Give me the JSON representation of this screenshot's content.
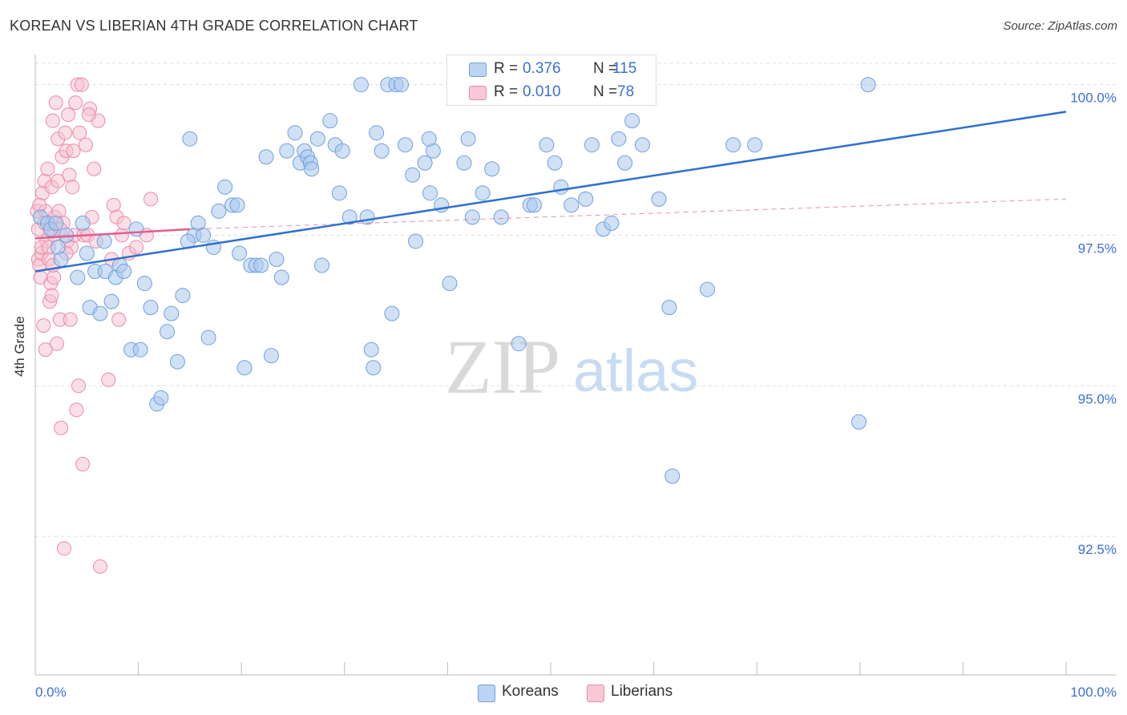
{
  "title": "KOREAN VS LIBERIAN 4TH GRADE CORRELATION CHART",
  "source": "Source: ZipAtlas.com",
  "watermark": {
    "zip": "ZIP",
    "atlas": "atlas"
  },
  "legend_top": [
    {
      "r_label": "R =",
      "r_value": "0.376",
      "n_label": "N =",
      "n_value": "115"
    },
    {
      "r_label": "R =",
      "r_value": "0.010",
      "n_label": "N =",
      "n_value": "78"
    }
  ],
  "legend_bottom": [
    "Koreans",
    "Liberians"
  ],
  "colors": {
    "koreans_fill": "#aac8ef",
    "koreans_stroke": "#6f9fdc",
    "koreans_line": "#2f6fd0",
    "liberians_fill": "#f7c0d0",
    "liberians_stroke": "#e98aa8",
    "liberians_line": "#e45c8a",
    "tick_label": "#3a6fd8",
    "grid": "#dddddd"
  },
  "chart_data": {
    "type": "scatter",
    "title": "KOREAN VS LIBERIAN 4TH GRADE CORRELATION CHART",
    "xlabel": "",
    "ylabel": "4th Grade",
    "xlim": [
      0,
      100
    ],
    "ylim": [
      90.2,
      100.5
    ],
    "x_tick_labels": [
      "0.0%",
      "100.0%"
    ],
    "y_ticks": [
      92.5,
      95.0,
      97.5,
      100.0
    ],
    "y_tick_labels": [
      "92.5%",
      "95.0%",
      "97.5%",
      "100.0%"
    ],
    "grid": "horizontal dashed",
    "legend_position": "top-center and bottom-center",
    "series": [
      {
        "name": "Koreans",
        "R": 0.376,
        "N": 115,
        "trend": {
          "x": [
            0,
            100
          ],
          "y": [
            96.9,
            99.55
          ]
        },
        "points": [
          [
            0.5,
            97.8
          ],
          [
            1.2,
            97.7
          ],
          [
            1.5,
            97.6
          ],
          [
            2.0,
            97.7
          ],
          [
            2.2,
            97.3
          ],
          [
            2.5,
            97.1
          ],
          [
            3.0,
            97.5
          ],
          [
            4.1,
            96.8
          ],
          [
            5.0,
            97.2
          ],
          [
            5.3,
            96.3
          ],
          [
            5.8,
            96.9
          ],
          [
            6.3,
            96.2
          ],
          [
            6.8,
            96.9
          ],
          [
            7.4,
            96.4
          ],
          [
            7.8,
            96.8
          ],
          [
            8.2,
            97.0
          ],
          [
            8.6,
            96.9
          ],
          [
            9.3,
            95.6
          ],
          [
            9.8,
            97.6
          ],
          [
            10.2,
            95.6
          ],
          [
            10.6,
            96.7
          ],
          [
            11.2,
            96.3
          ],
          [
            11.8,
            94.7
          ],
          [
            12.2,
            94.8
          ],
          [
            12.8,
            95.9
          ],
          [
            13.2,
            96.2
          ],
          [
            13.8,
            95.4
          ],
          [
            14.3,
            96.5
          ],
          [
            15.0,
            99.1
          ],
          [
            15.4,
            97.5
          ],
          [
            15.8,
            97.7
          ],
          [
            16.3,
            97.5
          ],
          [
            16.8,
            95.8
          ],
          [
            17.3,
            97.3
          ],
          [
            17.8,
            97.9
          ],
          [
            18.4,
            98.3
          ],
          [
            19.1,
            98.0
          ],
          [
            19.6,
            98.0
          ],
          [
            19.8,
            97.2
          ],
          [
            20.3,
            95.3
          ],
          [
            20.9,
            97.0
          ],
          [
            21.4,
            97.0
          ],
          [
            21.9,
            97.0
          ],
          [
            22.4,
            98.8
          ],
          [
            22.9,
            95.5
          ],
          [
            23.4,
            97.1
          ],
          [
            23.9,
            96.8
          ],
          [
            24.4,
            98.9
          ],
          [
            25.2,
            99.2
          ],
          [
            25.7,
            98.7
          ],
          [
            26.1,
            98.9
          ],
          [
            26.4,
            98.8
          ],
          [
            26.7,
            98.7
          ],
          [
            27.4,
            99.1
          ],
          [
            27.8,
            97.0
          ],
          [
            28.6,
            99.4
          ],
          [
            29.1,
            99.0
          ],
          [
            29.8,
            98.9
          ],
          [
            30.5,
            97.8
          ],
          [
            31.6,
            100.0
          ],
          [
            32.2,
            97.8
          ],
          [
            32.6,
            95.6
          ],
          [
            32.8,
            95.3
          ],
          [
            33.6,
            98.9
          ],
          [
            34.2,
            100.0
          ],
          [
            34.6,
            96.2
          ],
          [
            35.0,
            100.0
          ],
          [
            35.5,
            100.0
          ],
          [
            35.9,
            99.0
          ],
          [
            36.6,
            98.5
          ],
          [
            36.9,
            97.4
          ],
          [
            37.8,
            98.7
          ],
          [
            38.3,
            98.2
          ],
          [
            38.6,
            98.9
          ],
          [
            39.4,
            98.0
          ],
          [
            40.2,
            96.7
          ],
          [
            40.7,
            100.0
          ],
          [
            41.6,
            98.7
          ],
          [
            42.0,
            99.1
          ],
          [
            42.4,
            97.8
          ],
          [
            43.4,
            98.2
          ],
          [
            45.2,
            97.8
          ],
          [
            46.0,
            100.0
          ],
          [
            46.9,
            95.7
          ],
          [
            48.0,
            98.0
          ],
          [
            48.4,
            98.0
          ],
          [
            50.4,
            98.7
          ],
          [
            51.0,
            98.3
          ],
          [
            52.0,
            98.0
          ],
          [
            52.6,
            100.0
          ],
          [
            53.4,
            98.1
          ],
          [
            54.0,
            99.0
          ],
          [
            55.1,
            97.6
          ],
          [
            55.9,
            97.7
          ],
          [
            56.6,
            99.1
          ],
          [
            57.2,
            98.7
          ],
          [
            57.9,
            99.4
          ],
          [
            58.9,
            99.0
          ],
          [
            60.5,
            98.1
          ],
          [
            61.5,
            96.3
          ],
          [
            61.8,
            93.5
          ],
          [
            65.2,
            96.6
          ],
          [
            67.7,
            99.0
          ],
          [
            69.8,
            99.0
          ],
          [
            79.9,
            94.4
          ],
          [
            80.8,
            100.0
          ],
          [
            4.6,
            97.7
          ],
          [
            6.7,
            97.4
          ],
          [
            14.8,
            97.4
          ],
          [
            26.8,
            98.6
          ],
          [
            29.5,
            98.2
          ],
          [
            33.1,
            99.2
          ],
          [
            38.2,
            99.1
          ],
          [
            44.3,
            98.6
          ],
          [
            49.6,
            99.0
          ]
        ]
      },
      {
        "name": "Liberians",
        "R": 0.01,
        "N": 78,
        "trend_solid": {
          "x": [
            0,
            15
          ],
          "y": [
            97.45,
            97.6
          ]
        },
        "trend_dashed": {
          "x": [
            15,
            100
          ],
          "y": [
            97.6,
            98.1
          ]
        },
        "points": [
          [
            0.2,
            97.9
          ],
          [
            0.3,
            97.6
          ],
          [
            0.3,
            97.1
          ],
          [
            0.4,
            97.0
          ],
          [
            0.5,
            96.8
          ],
          [
            0.6,
            97.2
          ],
          [
            0.7,
            98.2
          ],
          [
            0.8,
            96.0
          ],
          [
            0.9,
            98.4
          ],
          [
            1.0,
            95.6
          ],
          [
            1.0,
            97.9
          ],
          [
            1.1,
            97.4
          ],
          [
            1.2,
            98.6
          ],
          [
            1.3,
            97.1
          ],
          [
            1.4,
            96.4
          ],
          [
            1.5,
            96.7
          ],
          [
            1.5,
            97.6
          ],
          [
            1.6,
            98.3
          ],
          [
            1.6,
            96.5
          ],
          [
            1.7,
            99.4
          ],
          [
            1.8,
            96.8
          ],
          [
            1.8,
            97.5
          ],
          [
            1.9,
            97.8
          ],
          [
            2.0,
            99.7
          ],
          [
            2.1,
            95.7
          ],
          [
            2.2,
            99.1
          ],
          [
            2.2,
            98.4
          ],
          [
            2.3,
            97.9
          ],
          [
            2.4,
            96.1
          ],
          [
            2.5,
            94.3
          ],
          [
            2.6,
            98.8
          ],
          [
            2.7,
            97.7
          ],
          [
            2.8,
            92.3
          ],
          [
            2.9,
            99.2
          ],
          [
            3.0,
            98.9
          ],
          [
            3.1,
            97.4
          ],
          [
            3.2,
            99.5
          ],
          [
            3.3,
            98.5
          ],
          [
            3.4,
            96.1
          ],
          [
            3.5,
            97.3
          ],
          [
            3.6,
            98.3
          ],
          [
            3.7,
            98.9
          ],
          [
            3.8,
            97.5
          ],
          [
            3.9,
            99.7
          ],
          [
            4.0,
            94.6
          ],
          [
            4.1,
            100.0
          ],
          [
            4.2,
            95.0
          ],
          [
            4.3,
            99.2
          ],
          [
            4.5,
            100.0
          ],
          [
            4.6,
            93.7
          ],
          [
            4.7,
            97.5
          ],
          [
            4.9,
            99.0
          ],
          [
            5.1,
            97.5
          ],
          [
            5.3,
            99.6
          ],
          [
            5.5,
            97.8
          ],
          [
            5.7,
            98.6
          ],
          [
            5.9,
            97.4
          ],
          [
            6.1,
            99.4
          ],
          [
            6.3,
            92.0
          ],
          [
            7.1,
            95.1
          ],
          [
            7.4,
            97.1
          ],
          [
            7.6,
            98.0
          ],
          [
            7.9,
            97.8
          ],
          [
            8.1,
            96.1
          ],
          [
            8.4,
            97.5
          ],
          [
            8.6,
            97.7
          ],
          [
            9.1,
            97.2
          ],
          [
            9.8,
            97.3
          ],
          [
            10.8,
            97.5
          ],
          [
            11.2,
            98.1
          ],
          [
            5.2,
            99.5
          ],
          [
            0.6,
            97.3
          ],
          [
            1.7,
            97.0
          ],
          [
            3.0,
            97.2
          ],
          [
            2.4,
            97.6
          ],
          [
            0.9,
            97.7
          ],
          [
            1.3,
            97.3
          ],
          [
            0.4,
            98.0
          ]
        ]
      }
    ]
  }
}
